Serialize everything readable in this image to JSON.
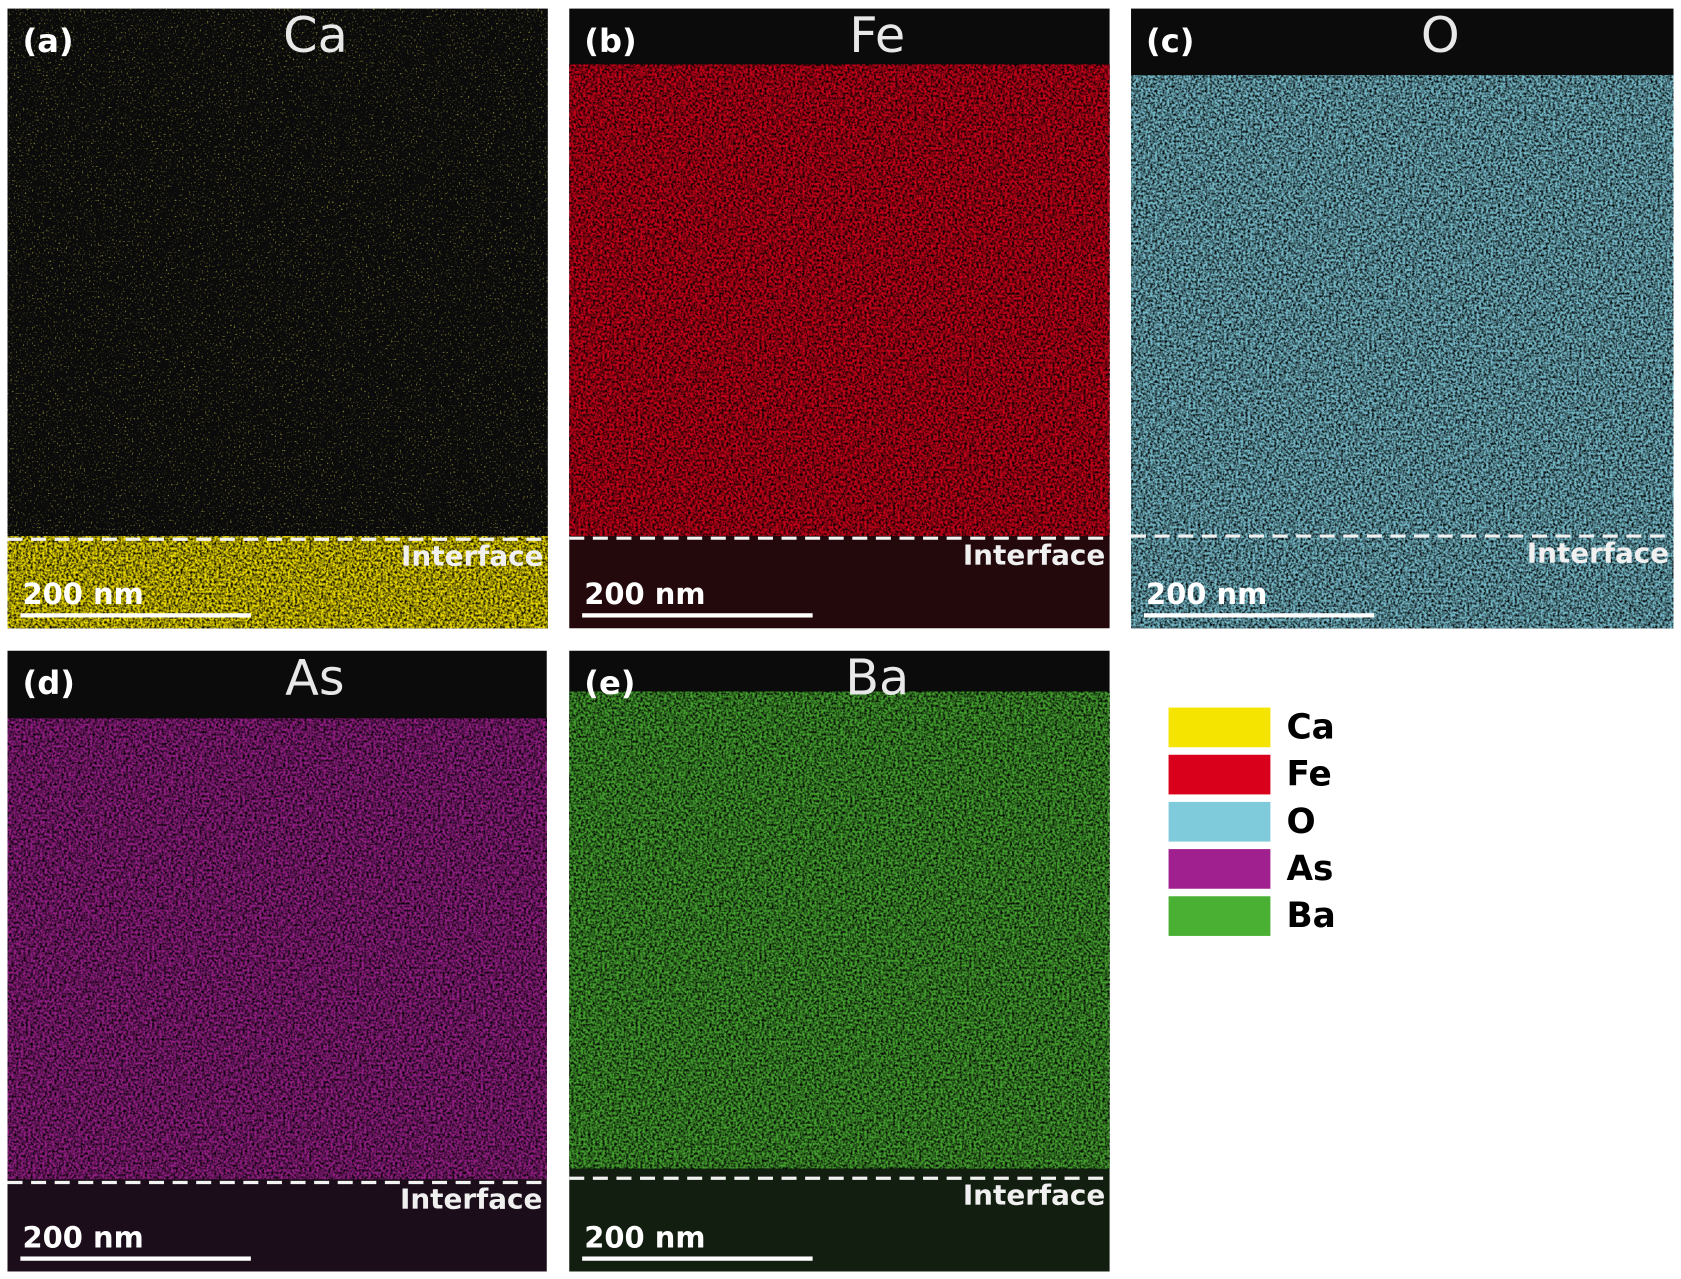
{
  "panels": [
    {
      "label": "(a)",
      "element": "Ca",
      "interface": "Interface",
      "scale_bar": "200 nm"
    },
    {
      "label": "(b)",
      "element": "Fe",
      "interface": "Interface",
      "scale_bar": "200 nm"
    },
    {
      "label": "(c)",
      "element": "O",
      "interface": "Interface",
      "scale_bar": "200 nm"
    },
    {
      "label": "(d)",
      "element": "As",
      "interface": "Interface",
      "scale_bar": "200 nm"
    },
    {
      "label": "(e)",
      "element": "Ba",
      "interface": "Interface",
      "scale_bar": "200 nm"
    }
  ],
  "legend": [
    {
      "name": "Ca",
      "color": "#f5e400"
    },
    {
      "name": "Fe",
      "color": "#d9001b"
    },
    {
      "name": "O",
      "color": "#7fcbdc"
    },
    {
      "name": "As",
      "color": "#a0208f"
    },
    {
      "name": "Ba",
      "color": "#4ab033"
    }
  ]
}
